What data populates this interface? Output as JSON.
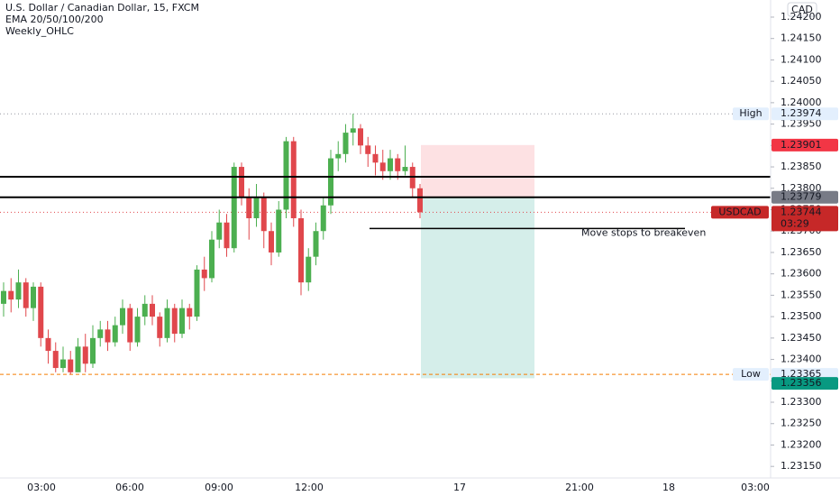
{
  "chart_data": {
    "type": "candlestick",
    "title": "U.S. Dollar / Canadian Dollar, 15, FXCM",
    "indicators": [
      "EMA 20/50/100/200",
      "Weekly_OHLC"
    ],
    "currency": "CAD",
    "up_color": "#4caf50",
    "down_color": "#e0474c",
    "open": [
      1.2353,
      1.2356,
      1.2354,
      1.2358,
      1.2352,
      1.2357,
      1.2345,
      1.2342,
      1.2338,
      1.234,
      1.2337,
      1.2343,
      1.2339,
      1.2345,
      1.2347,
      1.2344,
      1.2348,
      1.2352,
      1.2344,
      1.235,
      1.2353,
      1.235,
      1.2345,
      1.2352,
      1.2346,
      1.2352,
      1.235,
      1.2361,
      1.2359,
      1.2368,
      1.2372,
      1.2366,
      1.2385,
      1.2378,
      1.2373,
      1.2378,
      1.237,
      1.2365,
      1.2375,
      1.2391,
      1.2373,
      1.2358,
      1.2364,
      1.237,
      1.2376,
      1.2387,
      1.2388,
      1.2393,
      1.2394,
      1.239,
      1.2388,
      1.2386,
      1.2384,
      1.2387,
      1.2384,
      1.2385,
      1.238
    ],
    "high": [
      1.2358,
      1.2359,
      1.2361,
      1.2359,
      1.2358,
      1.2358,
      1.2347,
      1.2344,
      1.2343,
      1.2342,
      1.2345,
      1.2346,
      1.2348,
      1.2349,
      1.2349,
      1.235,
      1.2354,
      1.2353,
      1.2352,
      1.2355,
      1.2355,
      1.2351,
      1.2354,
      1.2353,
      1.2354,
      1.2353,
      1.2362,
      1.2364,
      1.237,
      1.2375,
      1.2374,
      1.2386,
      1.2386,
      1.238,
      1.2381,
      1.2379,
      1.2372,
      1.2377,
      1.2392,
      1.2392,
      1.2375,
      1.2366,
      1.2372,
      1.2378,
      1.2389,
      1.2391,
      1.2395,
      1.23974,
      1.2395,
      1.2392,
      1.239,
      1.2389,
      1.2389,
      1.2388,
      1.239,
      1.2386,
      1.2381
    ],
    "low": [
      1.235,
      1.2351,
      1.2352,
      1.235,
      1.2349,
      1.2343,
      1.2339,
      1.2337,
      1.2337,
      1.23365,
      1.2337,
      1.2337,
      1.2338,
      1.2343,
      1.2342,
      1.2343,
      1.2346,
      1.2342,
      1.2343,
      1.2348,
      1.2348,
      1.2343,
      1.2344,
      1.2344,
      1.2345,
      1.2347,
      1.2349,
      1.2356,
      1.2358,
      1.2366,
      1.2364,
      1.2365,
      1.2376,
      1.2368,
      1.2371,
      1.2366,
      1.2362,
      1.2364,
      1.2373,
      1.2371,
      1.2355,
      1.2356,
      1.2362,
      1.2368,
      1.2374,
      1.2384,
      1.2386,
      1.239,
      1.2388,
      1.2385,
      1.2383,
      1.2382,
      1.2382,
      1.2382,
      1.2383,
      1.2378,
      1.2373
    ],
    "close": [
      1.2356,
      1.2354,
      1.2358,
      1.2352,
      1.2357,
      1.2345,
      1.2342,
      1.2338,
      1.234,
      1.2337,
      1.2343,
      1.2339,
      1.2345,
      1.2347,
      1.2344,
      1.2348,
      1.2352,
      1.2344,
      1.235,
      1.2353,
      1.235,
      1.2345,
      1.2352,
      1.2346,
      1.2352,
      1.235,
      1.2361,
      1.2359,
      1.2368,
      1.2372,
      1.2366,
      1.2385,
      1.2378,
      1.2373,
      1.2378,
      1.237,
      1.2365,
      1.2375,
      1.2391,
      1.2373,
      1.2358,
      1.2364,
      1.237,
      1.2376,
      1.2387,
      1.2388,
      1.2393,
      1.2394,
      1.239,
      1.2388,
      1.2386,
      1.2384,
      1.2387,
      1.2384,
      1.2385,
      1.238,
      1.23744
    ],
    "ylim": [
      1.23123,
      1.2424
    ],
    "yticks": [
      {
        "value": 1.242,
        "label": "1.24200"
      },
      {
        "value": 1.2415,
        "label": "1.24150"
      },
      {
        "value": 1.241,
        "label": "1.24100"
      },
      {
        "value": 1.2405,
        "label": "1.24050"
      },
      {
        "value": 1.24,
        "label": "1.24000"
      },
      {
        "value": 1.2395,
        "label": "1.23950"
      },
      {
        "value": 1.239,
        "label": "1.23900"
      },
      {
        "value": 1.2385,
        "label": "1.23850"
      },
      {
        "value": 1.238,
        "label": "1.23800"
      },
      {
        "value": 1.2375,
        "label": "1.23750"
      },
      {
        "value": 1.237,
        "label": "1.23700"
      },
      {
        "value": 1.2365,
        "label": "1.23650"
      },
      {
        "value": 1.236,
        "label": "1.23600"
      },
      {
        "value": 1.2355,
        "label": "1.23550"
      },
      {
        "value": 1.235,
        "label": "1.23500"
      },
      {
        "value": 1.2345,
        "label": "1.23450"
      },
      {
        "value": 1.234,
        "label": "1.23400"
      },
      {
        "value": 1.2335,
        "label": "1.23350"
      },
      {
        "value": 1.233,
        "label": "1.23300"
      },
      {
        "value": 1.2325,
        "label": "1.23250"
      },
      {
        "value": 1.232,
        "label": "1.23200"
      },
      {
        "value": 1.2315,
        "label": "1.23150"
      }
    ],
    "xtick_labels": [
      "03:00",
      "06:00",
      "09:00",
      "12:00",
      "17",
      "21:00",
      "18",
      "03:00"
    ],
    "levels": [
      1.23827,
      1.23779
    ],
    "position": {
      "stop": 1.23901,
      "entry": 1.23779,
      "target": 1.23356
    },
    "high_marker": {
      "label": "High",
      "value": 1.23974
    },
    "low_marker": {
      "label": "Low",
      "value": 1.23365
    },
    "last_price": {
      "label": "USDCAD",
      "value": 1.23744,
      "countdown": "03:29"
    },
    "note": {
      "text": "Move stops to breakeven",
      "value": 1.23706
    }
  }
}
